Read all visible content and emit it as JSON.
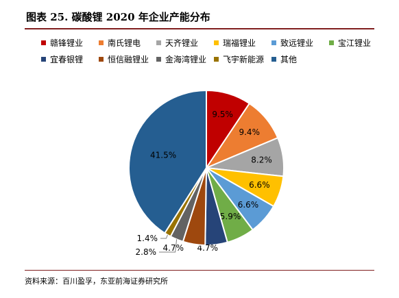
{
  "figure": {
    "title": "图表 25.  碳酸锂 2020 年企业产能分布",
    "source": "资料来源：百川盈孚，东亚前海证券研究所"
  },
  "chart_data": {
    "type": "pie",
    "title": "",
    "unit": "%",
    "legend_position": "top",
    "slices": [
      {
        "name": "赣锋锂业",
        "value": 9.5,
        "label": "9.5%",
        "color": "#c00000"
      },
      {
        "name": "南氏锂电",
        "value": 9.4,
        "label": "9.4%",
        "color": "#ed7d31"
      },
      {
        "name": "天齐锂业",
        "value": 8.2,
        "label": "8.2%",
        "color": "#a5a5a5"
      },
      {
        "name": "瑞福锂业",
        "value": 6.6,
        "label": "6.6%",
        "color": "#ffc000"
      },
      {
        "name": "致远锂业",
        "value": 6.6,
        "label": "6.6%",
        "color": "#5b9bd5"
      },
      {
        "name": "宝江锂业",
        "value": 5.9,
        "label": "5.9%",
        "color": "#70ad47"
      },
      {
        "name": "宜春银锂",
        "value": 4.7,
        "label": "4.7%",
        "color": "#264478"
      },
      {
        "name": "恒信融锂业",
        "value": 4.7,
        "label": "4.7%",
        "color": "#9e480e"
      },
      {
        "name": "金海湾锂业",
        "value": 2.8,
        "label": "2.8%",
        "color": "#636363"
      },
      {
        "name": "飞宇新能源",
        "value": 1.4,
        "label": "1.4%",
        "color": "#997300"
      },
      {
        "name": "其他",
        "value": 41.5,
        "label": "41.5%",
        "color": "#255e91"
      }
    ]
  }
}
